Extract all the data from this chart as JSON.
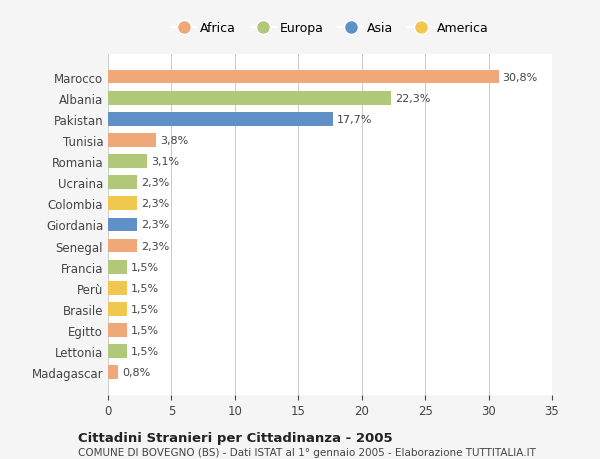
{
  "countries": [
    "Marocco",
    "Albania",
    "Pakistan",
    "Tunisia",
    "Romania",
    "Ucraina",
    "Colombia",
    "Giordania",
    "Senegal",
    "Francia",
    "Perù",
    "Brasile",
    "Egitto",
    "Lettonia",
    "Madagascar"
  ],
  "values": [
    30.8,
    22.3,
    17.7,
    3.8,
    3.1,
    2.3,
    2.3,
    2.3,
    2.3,
    1.5,
    1.5,
    1.5,
    1.5,
    1.5,
    0.8
  ],
  "labels": [
    "30,8%",
    "22,3%",
    "17,7%",
    "3,8%",
    "3,1%",
    "2,3%",
    "2,3%",
    "2,3%",
    "2,3%",
    "1,5%",
    "1,5%",
    "1,5%",
    "1,5%",
    "1,5%",
    "0,8%"
  ],
  "continents": [
    "Africa",
    "Europa",
    "Asia",
    "Africa",
    "Europa",
    "Europa",
    "America",
    "Asia",
    "Africa",
    "Europa",
    "America",
    "America",
    "Africa",
    "Europa",
    "Africa"
  ],
  "colors": {
    "Africa": "#F0A878",
    "Europa": "#B0C878",
    "Asia": "#6090C8",
    "America": "#F0C850"
  },
  "legend_order": [
    "Africa",
    "Europa",
    "Asia",
    "America"
  ],
  "xlim": [
    0,
    35
  ],
  "xticks": [
    0,
    5,
    10,
    15,
    20,
    25,
    30,
    35
  ],
  "title": "Cittadini Stranieri per Cittadinanza - 2005",
  "subtitle": "COMUNE DI BOVEGNO (BS) - Dati ISTAT al 1° gennaio 2005 - Elaborazione TUTTITALIA.IT",
  "bg_color": "#f5f5f5",
  "plot_bg_color": "#ffffff"
}
